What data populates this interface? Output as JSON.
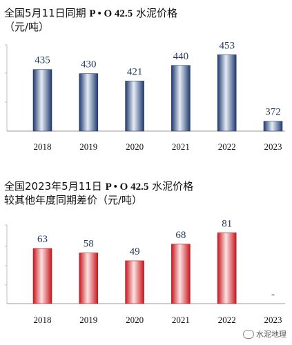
{
  "chart_data": [
    {
      "type": "bar",
      "title_line1": "全国5月11日同期",
      "title_bold": "P • O 42.5",
      "title_line1_tail": "水泥价格",
      "title_line2": "（元/吨）",
      "categories": [
        "2018",
        "2019",
        "2020",
        "2021",
        "2022",
        "2023"
      ],
      "values": [
        435,
        430,
        421,
        440,
        453,
        372
      ],
      "labels": [
        "435",
        "430",
        "421",
        "440",
        "453",
        "372"
      ],
      "color": "#1f3a6e",
      "ylim": [
        360,
        465
      ]
    },
    {
      "type": "bar",
      "title_line1": "全国2023年5月11日",
      "title_bold": "P • O 42.5",
      "title_line1_tail": "水泥价格",
      "title_line2": "较其他年度同期差价（元/吨）",
      "categories": [
        "2018",
        "2019",
        "2020",
        "2021",
        "2022",
        "2023"
      ],
      "values": [
        63,
        58,
        49,
        68,
        81,
        null
      ],
      "labels": [
        "63",
        "58",
        "49",
        "68",
        "81",
        "-"
      ],
      "color": "#c8161d",
      "ylim": [
        0,
        90
      ]
    }
  ],
  "watermark": "水泥地理"
}
